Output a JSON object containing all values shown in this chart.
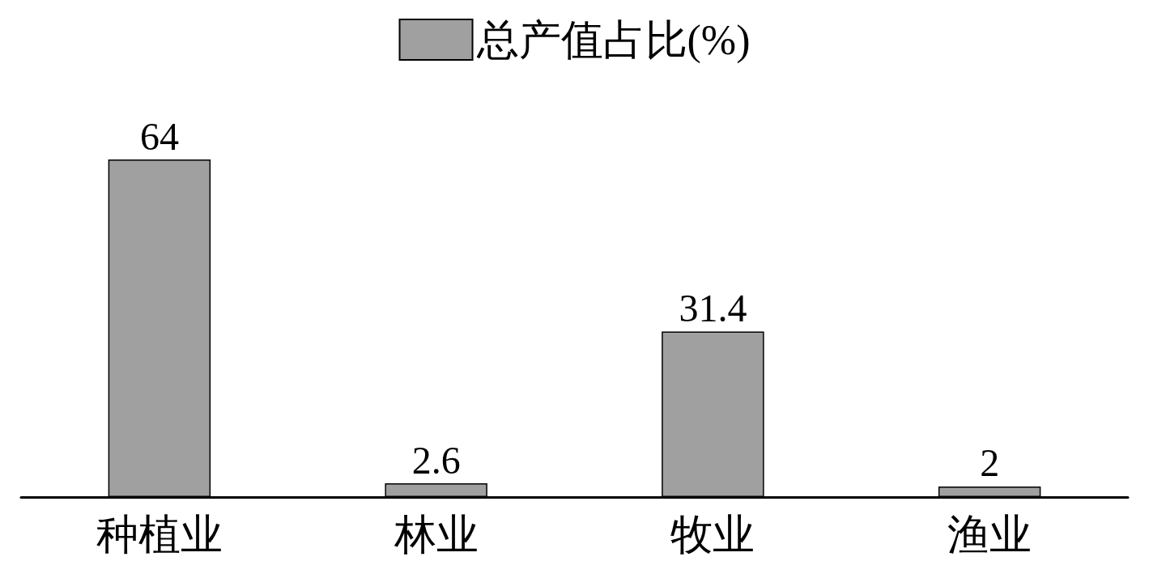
{
  "chart_data": {
    "type": "bar",
    "categories": [
      "种植业",
      "林业",
      "牧业",
      "渔业"
    ],
    "series": [
      {
        "name": "总产值占比(%)",
        "color": "#a0a0a0",
        "values": [
          64,
          2.6,
          31.4,
          2
        ]
      }
    ],
    "data_labels": true,
    "legend": "top"
  }
}
